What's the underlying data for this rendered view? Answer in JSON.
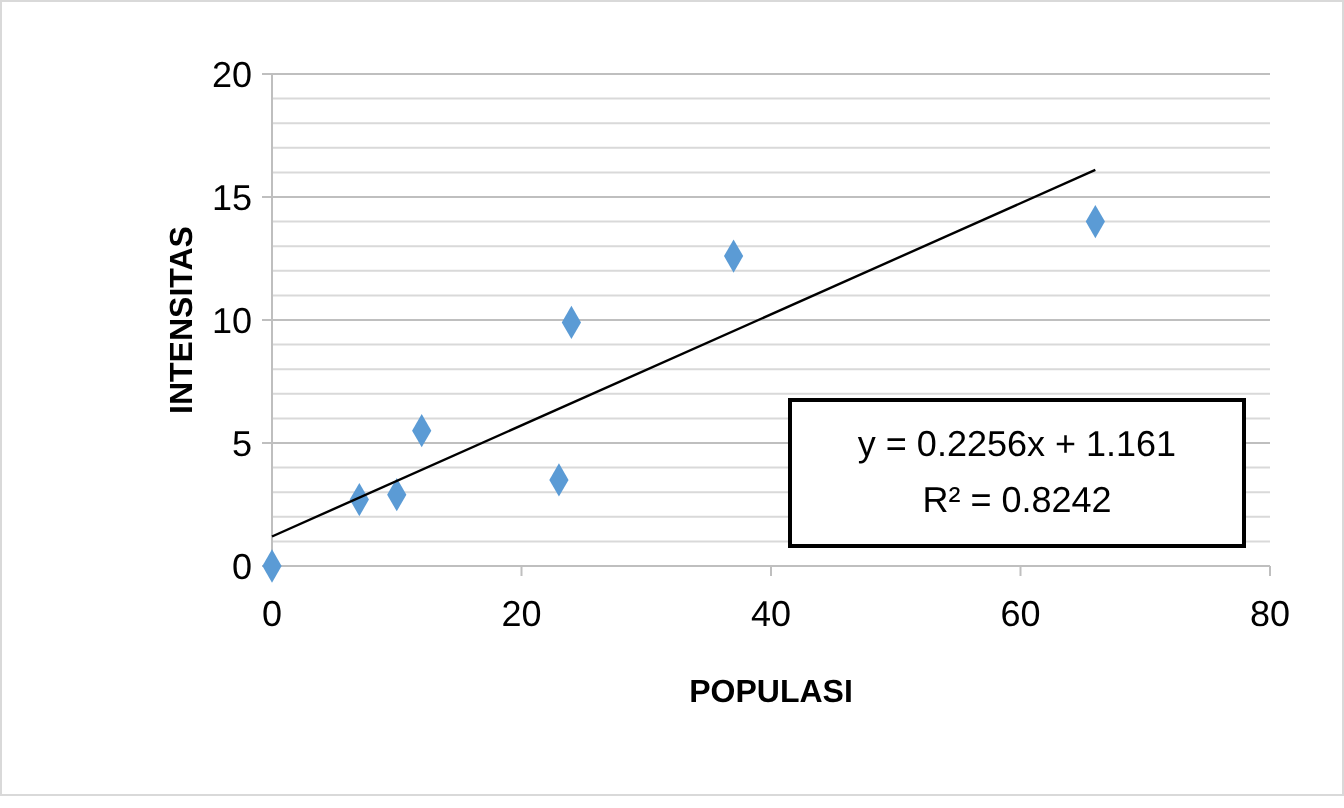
{
  "chart_data": {
    "type": "scatter",
    "xlabel": "POPULASI",
    "ylabel": "INTENSITAS",
    "marker": "diamond",
    "grid": "y",
    "xlim": [
      0,
      80
    ],
    "xticks": [
      0,
      20,
      40,
      60,
      80
    ],
    "ylim": [
      0,
      20
    ],
    "yticks": [
      0,
      {
        "value": 1,
        "label": null
      },
      {
        "value": 2,
        "label": null
      },
      {
        "value": 3,
        "label": null
      },
      {
        "value": 4,
        "label": null
      },
      5,
      {
        "value": 6,
        "label": null
      },
      {
        "value": 7,
        "label": null
      },
      {
        "value": 8,
        "label": null
      },
      {
        "value": 9,
        "label": null
      },
      10,
      {
        "value": 11,
        "label": null
      },
      {
        "value": 12,
        "label": null
      },
      {
        "value": 13,
        "label": null
      },
      {
        "value": 14,
        "label": null
      },
      15,
      {
        "value": 16,
        "label": null
      },
      {
        "value": 17,
        "label": null
      },
      {
        "value": 18,
        "label": null
      },
      {
        "value": 19,
        "label": null
      },
      20
    ],
    "series": [
      {
        "color": "#5b9bd5",
        "x": [
          0,
          7,
          10,
          12,
          23,
          24,
          37,
          66
        ],
        "values": [
          0,
          2.7,
          2.9,
          5.5,
          3.5,
          9.9,
          12.6,
          14.0
        ]
      },
      {
        "type": "line",
        "color": "#000000",
        "marker": "none",
        "x": [
          0,
          66
        ],
        "values": [
          1.2,
          16.1
        ]
      }
    ],
    "annotations": [
      "y = 0.2256x + 1.161",
      "R² = 0.8242"
    ]
  }
}
